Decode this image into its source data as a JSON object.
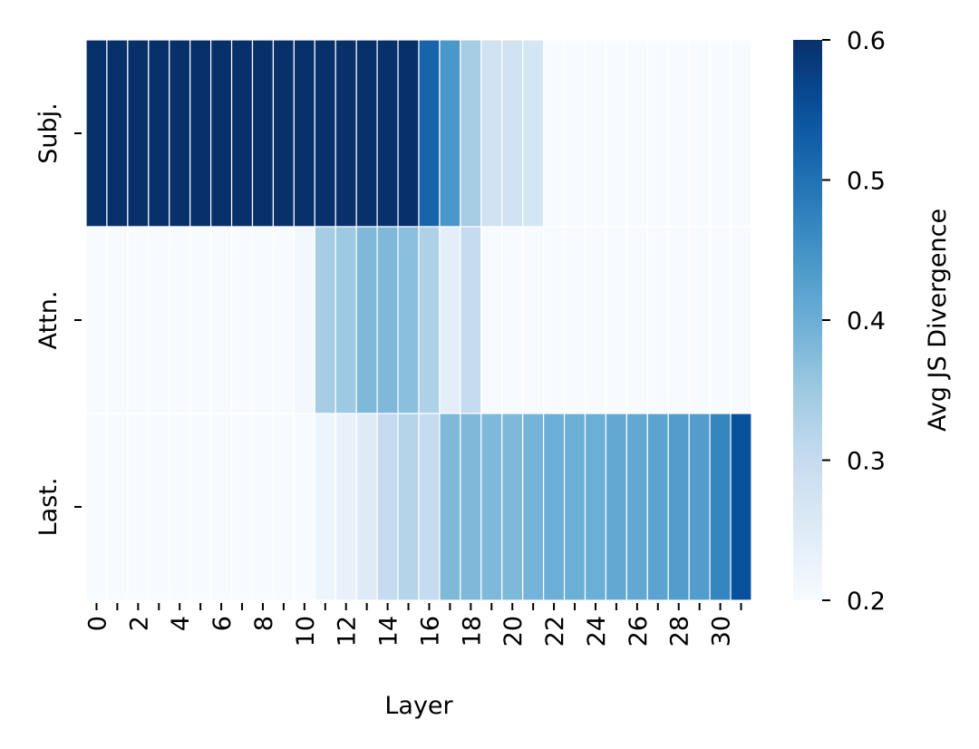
{
  "chart_data": {
    "type": "heatmap",
    "title": "",
    "xlabel": "Layer",
    "ylabel": "",
    "x": [
      0,
      1,
      2,
      3,
      4,
      5,
      6,
      7,
      8,
      9,
      10,
      11,
      12,
      13,
      14,
      15,
      16,
      17,
      18,
      19,
      20,
      21,
      22,
      23,
      24,
      25,
      26,
      27,
      28,
      29,
      30,
      31
    ],
    "x_tick_labels": [
      "0",
      "2",
      "4",
      "6",
      "8",
      "10",
      "12",
      "14",
      "16",
      "18",
      "20",
      "22",
      "24",
      "26",
      "28",
      "30"
    ],
    "rows": [
      "Subj.",
      "Attn.",
      "Last."
    ],
    "values": [
      [
        0.6,
        0.6,
        0.6,
        0.6,
        0.6,
        0.6,
        0.6,
        0.6,
        0.6,
        0.6,
        0.6,
        0.6,
        0.6,
        0.6,
        0.6,
        0.6,
        0.52,
        0.44,
        0.34,
        0.28,
        0.28,
        0.27,
        0.2,
        0.2,
        0.2,
        0.2,
        0.2,
        0.2,
        0.2,
        0.2,
        0.2,
        0.2
      ],
      [
        0.2,
        0.2,
        0.2,
        0.2,
        0.2,
        0.2,
        0.2,
        0.2,
        0.2,
        0.2,
        0.21,
        0.34,
        0.35,
        0.38,
        0.38,
        0.37,
        0.33,
        0.24,
        0.3,
        0.2,
        0.2,
        0.2,
        0.2,
        0.2,
        0.2,
        0.2,
        0.2,
        0.2,
        0.2,
        0.2,
        0.2,
        0.2
      ],
      [
        0.2,
        0.2,
        0.2,
        0.2,
        0.2,
        0.2,
        0.2,
        0.2,
        0.2,
        0.2,
        0.2,
        0.22,
        0.23,
        0.25,
        0.3,
        0.32,
        0.3,
        0.38,
        0.38,
        0.38,
        0.38,
        0.39,
        0.4,
        0.4,
        0.4,
        0.41,
        0.41,
        0.42,
        0.43,
        0.43,
        0.47,
        0.55
      ]
    ],
    "colorbar": {
      "label": "Avg JS Divergence",
      "vmin": 0.2,
      "vmax": 0.6,
      "ticks": [
        "0.2",
        "0.3",
        "0.4",
        "0.5",
        "0.6"
      ],
      "colormap": "Blues"
    },
    "grid": false
  }
}
